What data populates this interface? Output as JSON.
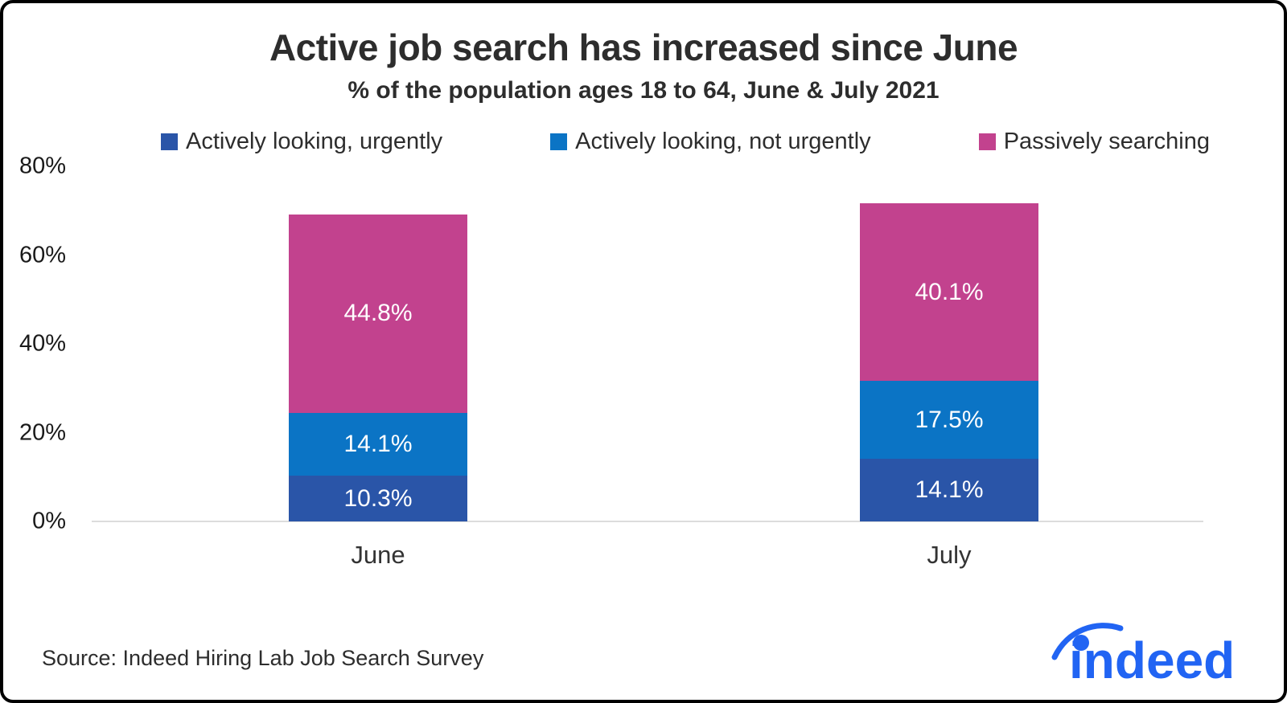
{
  "chart_data": {
    "type": "bar",
    "stacked": true,
    "title": "Active job search has increased since June",
    "subtitle": "% of the population ages 18 to 64, June & July 2021",
    "categories": [
      "June",
      "July"
    ],
    "series": [
      {
        "name": "Actively looking, urgently",
        "color": "#2A55A8",
        "values": [
          10.3,
          14.1
        ],
        "labels": [
          "10.3%",
          "14.1%"
        ]
      },
      {
        "name": "Actively looking, not urgently",
        "color": "#0B74C5",
        "values": [
          14.1,
          17.5
        ],
        "labels": [
          "14.1%",
          "17.5%"
        ]
      },
      {
        "name": "Passively searching",
        "color": "#C2428E",
        "values": [
          44.8,
          40.1
        ],
        "labels": [
          "44.8%",
          "40.1%"
        ]
      }
    ],
    "y_axis": {
      "min": 0,
      "max": 80,
      "ticks": [
        "0%",
        "20%",
        "40%",
        "60%",
        "80%"
      ]
    },
    "legend_position": "top",
    "grid": false
  },
  "footer": {
    "source": "Source: Indeed Hiring Lab Job Search Survey",
    "logo_text": "indeed",
    "logo_color": "#2164F3"
  }
}
